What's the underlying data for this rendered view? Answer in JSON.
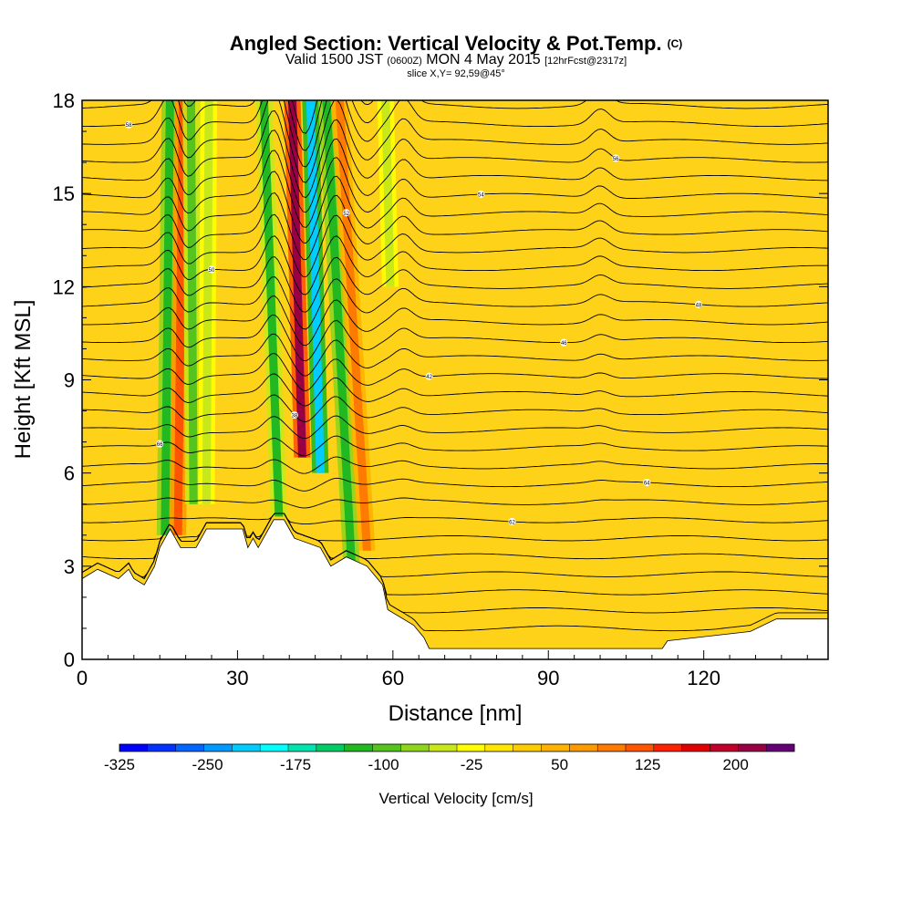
{
  "header": {
    "title": "Angled Section: Vertical Velocity & Pot.Temp.",
    "title_tag": "(C)",
    "valid_time": "Valid 1500 JST",
    "valid_utc": "(0600Z)",
    "valid_date": "MON 4 May 2015",
    "forecast": "[12hrFcst@2317z]",
    "slice": "slice X,Y= 92,59@45°"
  },
  "chart_data": {
    "type": "heatmap",
    "title": "Angled Section: Vertical Velocity & Pot.Temp.",
    "xlabel": "Distance [nm]",
    "ylabel": "Height [Kft MSL]",
    "xlim": [
      0,
      144
    ],
    "ylim": [
      0,
      18
    ],
    "x_ticks": [
      0,
      30,
      60,
      90,
      120
    ],
    "y_ticks": [
      0,
      3,
      6,
      9,
      12,
      15,
      18
    ],
    "colorbar": {
      "label": "Vertical Velocity [cm/s]",
      "tick_labels": [
        "-325",
        "-250",
        "-175",
        "-100",
        "-25",
        "50",
        "125",
        "200"
      ],
      "tick_values": [
        -325,
        -250,
        -175,
        -100,
        -25,
        50,
        125,
        200
      ],
      "range": [
        -325,
        250
      ],
      "colors": [
        "#0000ff",
        "#0033ff",
        "#0066ff",
        "#0099ff",
        "#00ccff",
        "#00ffff",
        "#00e5b0",
        "#00cc66",
        "#22b822",
        "#55c41e",
        "#8fd41c",
        "#c8e81a",
        "#ffff00",
        "#ffe500",
        "#ffcc00",
        "#ffb300",
        "#ff9900",
        "#ff7a00",
        "#ff5500",
        "#ff2200",
        "#e00000",
        "#c0002a",
        "#990044",
        "#660077"
      ]
    },
    "terrain_kft": [
      [
        0,
        2.6
      ],
      [
        3,
        2.9
      ],
      [
        7,
        2.6
      ],
      [
        9,
        2.9
      ],
      [
        10,
        2.6
      ],
      [
        12,
        2.4
      ],
      [
        14,
        3.0
      ],
      [
        15,
        3.6
      ],
      [
        16,
        3.9
      ],
      [
        17,
        4.2
      ],
      [
        18,
        3.9
      ],
      [
        19,
        3.6
      ],
      [
        22,
        3.6
      ],
      [
        23,
        3.9
      ],
      [
        24,
        4.2
      ],
      [
        31,
        4.2
      ],
      [
        32,
        3.6
      ],
      [
        33,
        3.9
      ],
      [
        34,
        3.6
      ],
      [
        35,
        3.9
      ],
      [
        36,
        4.2
      ],
      [
        37,
        4.5
      ],
      [
        39,
        4.5
      ],
      [
        40,
        4.2
      ],
      [
        41,
        3.9
      ],
      [
        46,
        3.6
      ],
      [
        47,
        3.3
      ],
      [
        48,
        3.0
      ],
      [
        51,
        3.3
      ],
      [
        55,
        3.0
      ],
      [
        58,
        2.4
      ],
      [
        59,
        1.6
      ],
      [
        64,
        1.1
      ],
      [
        66,
        0.7
      ],
      [
        67,
        0.35
      ],
      [
        112,
        0.35
      ],
      [
        113,
        0.6
      ],
      [
        129,
        0.9
      ],
      [
        134,
        1.3
      ],
      [
        144,
        1.3
      ]
    ],
    "vertical_velocity_bands": [
      {
        "x_top": 17.0,
        "x_bottom": 16.0,
        "z_bottom": 4.0,
        "value": -120
      },
      {
        "x_top": 19.5,
        "x_bottom": 18.5,
        "z_bottom": 4.0,
        "value": 110
      },
      {
        "x_top": 21.0,
        "x_bottom": 21.5,
        "z_bottom": 5.0,
        "value": -90
      },
      {
        "x_top": 24.5,
        "x_bottom": 24.0,
        "z_bottom": 5.0,
        "value": -60
      },
      {
        "x_top": 35.0,
        "x_bottom": 38.0,
        "z_bottom": 4.6,
        "value": -110
      },
      {
        "x_top": 40.5,
        "x_bottom": 42.5,
        "z_bottom": 6.5,
        "value": 210
      },
      {
        "x_top": 44.0,
        "x_bottom": 46.0,
        "z_bottom": 6.0,
        "value": -220
      },
      {
        "x_top": 47.0,
        "x_bottom": 52.0,
        "z_bottom": 3.1,
        "value": -130
      },
      {
        "x_top": 49.5,
        "x_bottom": 55.0,
        "z_bottom": 3.5,
        "value": 100
      },
      {
        "x_top": 58.5,
        "x_bottom": 59.5,
        "z_bottom": 12.0,
        "value": -40
      }
    ],
    "theta_contour_count": 31,
    "theta_contour_labels": [
      "26",
      "30",
      "34",
      "38",
      "42",
      "46",
      "48",
      "50",
      "52",
      "54",
      "56",
      "58",
      "60",
      "62",
      "64",
      "66"
    ]
  }
}
